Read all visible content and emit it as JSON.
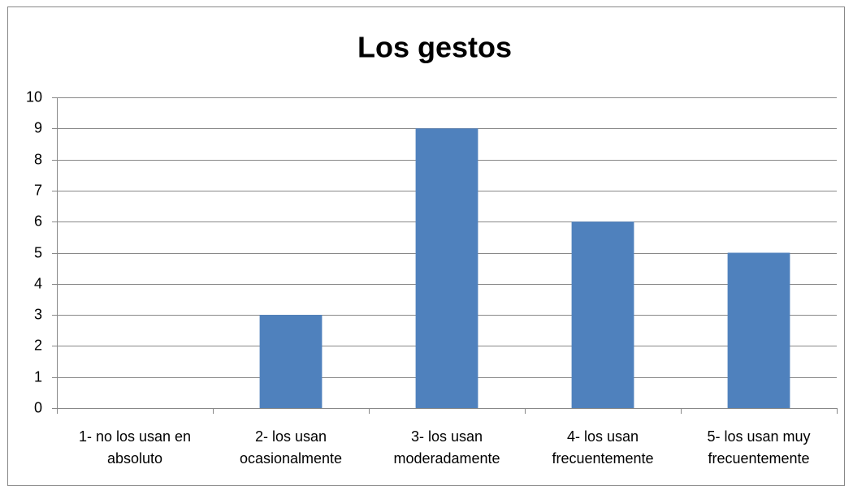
{
  "chart_data": {
    "type": "bar",
    "title": "Los gestos",
    "categories": [
      "1- no los usan en\nabsoluto",
      "2- los usan\nocasionalmente",
      "3- los usan\nmoderadamente",
      "4- los usan\nfrecuentemente",
      "5- los usan muy\nfrecuentemente"
    ],
    "values": [
      0,
      3,
      9,
      6,
      5
    ],
    "color": "#4f81bd",
    "ylim": [
      0,
      10
    ],
    "yticks": [
      0,
      1,
      2,
      3,
      4,
      5,
      6,
      7,
      8,
      9,
      10
    ],
    "grid": true
  }
}
